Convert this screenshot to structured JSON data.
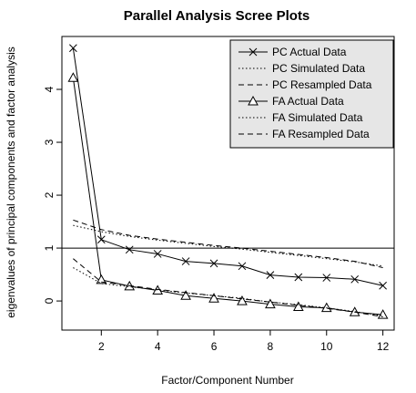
{
  "chart_data": {
    "type": "line",
    "title": "Parallel Analysis Scree Plots",
    "xlabel": "Factor/Component Number",
    "ylabel": "eigenvalues of principal components and factor analysis",
    "xlim": [
      0.6,
      12.4
    ],
    "ylim": [
      -0.55,
      5.0
    ],
    "x_ticks": [
      2,
      4,
      6,
      8,
      10,
      12
    ],
    "y_ticks": [
      0,
      1,
      2,
      3,
      4
    ],
    "reference_line": 1,
    "legend_position": "top-right",
    "x": [
      1,
      2,
      3,
      4,
      5,
      6,
      7,
      8,
      9,
      10,
      11,
      12
    ],
    "series": [
      {
        "name": "PC  Actual Data",
        "style": "solid",
        "marker": "x",
        "values": [
          4.78,
          1.16,
          0.97,
          0.89,
          0.75,
          0.71,
          0.66,
          0.49,
          0.45,
          0.44,
          0.41,
          0.29
        ]
      },
      {
        "name": "PC  Simulated Data",
        "style": "dotted",
        "marker": "none",
        "values": [
          1.43,
          1.31,
          1.22,
          1.15,
          1.09,
          1.03,
          0.98,
          0.92,
          0.86,
          0.8,
          0.74,
          0.66
        ]
      },
      {
        "name": "PC  Resampled Data",
        "style": "dashed",
        "marker": "none",
        "values": [
          1.53,
          1.35,
          1.24,
          1.17,
          1.11,
          1.05,
          1.0,
          0.94,
          0.88,
          0.82,
          0.75,
          0.63
        ]
      },
      {
        "name": "FA  Actual Data",
        "style": "solid",
        "marker": "triangle",
        "values": [
          4.22,
          0.4,
          0.28,
          0.2,
          0.1,
          0.05,
          0.0,
          -0.06,
          -0.11,
          -0.13,
          -0.21,
          -0.26
        ]
      },
      {
        "name": "FA  Simulated Data",
        "style": "dotted",
        "marker": "none",
        "values": [
          0.63,
          0.33,
          0.27,
          0.21,
          0.15,
          0.1,
          0.05,
          -0.02,
          -0.07,
          -0.13,
          -0.2,
          -0.28
        ]
      },
      {
        "name": "FA  Resampled Data",
        "style": "dashed",
        "marker": "none",
        "values": [
          0.8,
          0.36,
          0.29,
          0.22,
          0.16,
          0.1,
          0.04,
          -0.02,
          -0.08,
          -0.14,
          -0.21,
          -0.3
        ]
      }
    ]
  }
}
